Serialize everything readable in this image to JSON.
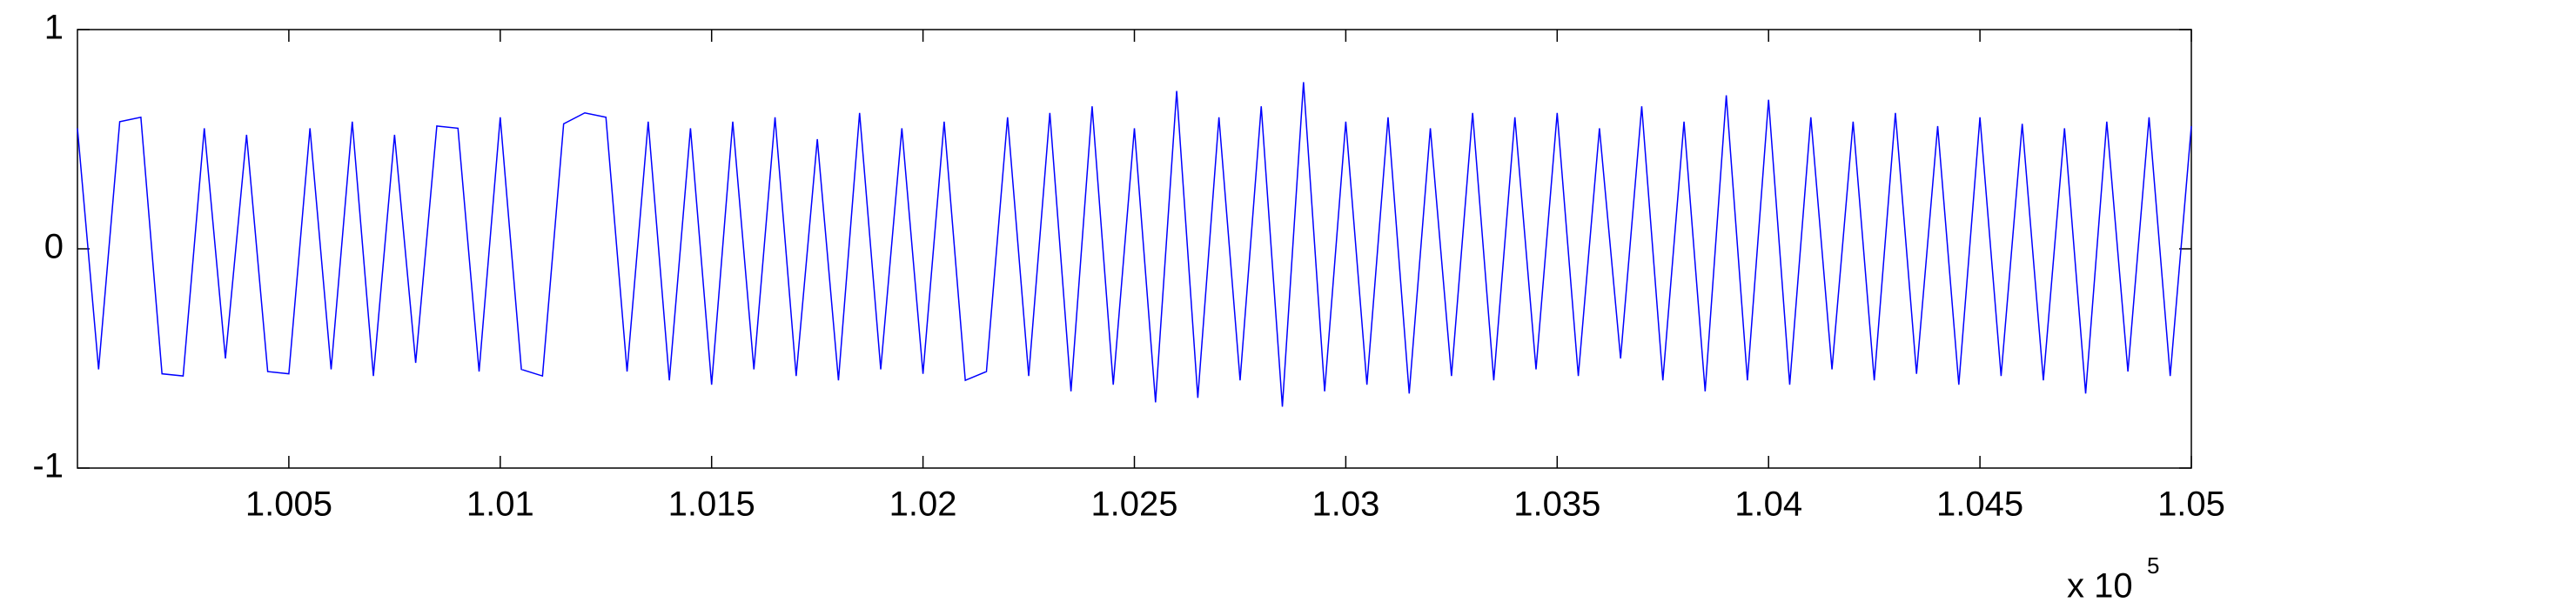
{
  "chart_data": {
    "type": "line",
    "x": [
      100000,
      100050,
      100100,
      100150,
      100200,
      100250,
      100300,
      100350,
      100400,
      100450,
      100500,
      100550,
      100600,
      100650,
      100700,
      100750,
      100800,
      100850,
      100900,
      100950,
      101000,
      101050,
      101100,
      101150,
      101200,
      101250,
      101300,
      101350,
      101400,
      101450,
      101500,
      101550,
      101600,
      101650,
      101700,
      101750,
      101800,
      101850,
      101900,
      101950,
      102000,
      102050,
      102100,
      102150,
      102200,
      102250,
      102300,
      102350,
      102400,
      102450,
      102500,
      102550,
      102600,
      102650,
      102700,
      102750,
      102800,
      102850,
      102900,
      102950,
      103000,
      103050,
      103100,
      103150,
      103200,
      103250,
      103300,
      103350,
      103400,
      103450,
      103500,
      103550,
      103600,
      103650,
      103700,
      103750,
      103800,
      103850,
      103900,
      103950,
      104000,
      104050,
      104100,
      104150,
      104200,
      104250,
      104300,
      104350,
      104400,
      104450,
      104500,
      104550,
      104600,
      104650,
      104700,
      104750,
      104800,
      104850,
      104900,
      104950,
      105000
    ],
    "series": [
      {
        "color": "#0000ff",
        "values": [
          0.55,
          -0.55,
          0.58,
          0.6,
          -0.57,
          -0.58,
          0.55,
          -0.5,
          0.52,
          -0.56,
          -0.57,
          0.55,
          -0.55,
          0.58,
          -0.58,
          0.52,
          -0.52,
          0.56,
          0.55,
          -0.56,
          0.6,
          -0.55,
          -0.58,
          0.57,
          0.62,
          0.6,
          -0.56,
          0.58,
          -0.6,
          0.55,
          -0.62,
          0.58,
          -0.55,
          0.6,
          -0.58,
          0.5,
          -0.6,
          0.62,
          -0.55,
          0.55,
          -0.57,
          0.58,
          -0.6,
          -0.56,
          0.6,
          -0.58,
          0.62,
          -0.65,
          0.65,
          -0.62,
          0.55,
          -0.7,
          0.72,
          -0.68,
          0.6,
          -0.6,
          0.65,
          -0.72,
          0.76,
          -0.65,
          0.58,
          -0.62,
          0.6,
          -0.66,
          0.55,
          -0.58,
          0.62,
          -0.6,
          0.6,
          -0.55,
          0.62,
          -0.58,
          0.55,
          -0.5,
          0.65,
          -0.6,
          0.58,
          -0.65,
          0.7,
          -0.6,
          0.68,
          -0.62,
          0.6,
          -0.55,
          0.58,
          -0.6,
          0.62,
          -0.57,
          0.56,
          -0.62,
          0.6,
          -0.58,
          0.57,
          -0.6,
          0.55,
          -0.66,
          0.58,
          -0.56,
          0.6,
          -0.58,
          0.56
        ]
      }
    ],
    "xlim": [
      100000,
      105000
    ],
    "xticks": [
      {
        "value": 100500,
        "label": "1.005"
      },
      {
        "value": 101000,
        "label": "1.01"
      },
      {
        "value": 101500,
        "label": "1.015"
      },
      {
        "value": 102000,
        "label": "1.02"
      },
      {
        "value": 102500,
        "label": "1.025"
      },
      {
        "value": 103000,
        "label": "1.03"
      },
      {
        "value": 103500,
        "label": "1.035"
      },
      {
        "value": 104000,
        "label": "1.04"
      },
      {
        "value": 104500,
        "label": "1.045"
      },
      {
        "value": 105000,
        "label": "1.05"
      }
    ],
    "ylim": [
      -1,
      1
    ],
    "yticks": [
      -1,
      0,
      1
    ],
    "x_multiplier": {
      "base": "x  10",
      "exponent": "5"
    }
  }
}
